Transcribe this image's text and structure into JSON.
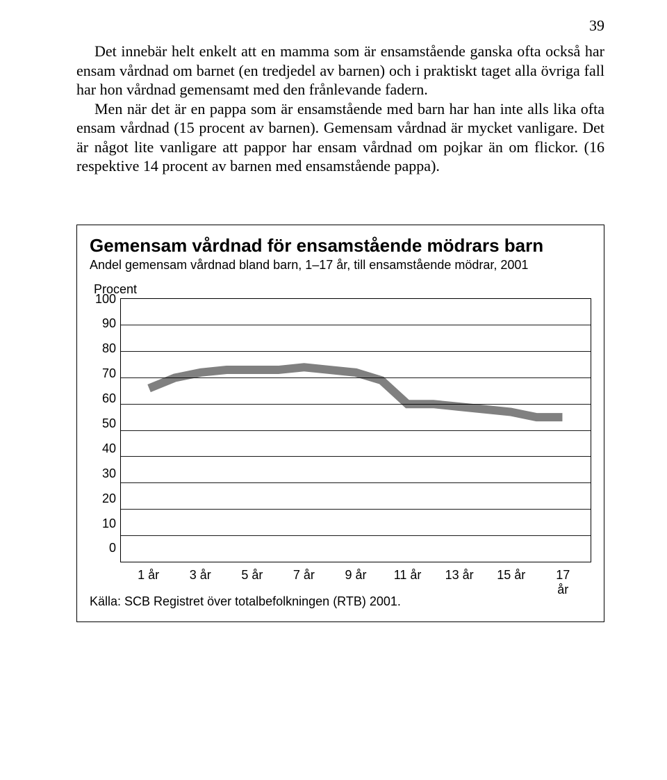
{
  "page_number": "39",
  "paragraph1": "Det innebär helt enkelt att en mamma som är ensamstående ganska ofta också har ensam vårdnad om barnet (en tredjedel av barnen) och i praktiskt taget alla övriga fall har hon vårdnad gemensamt med den frånlevande fadern.",
  "paragraph2": "Men när det är en pappa som är ensamstående med barn har han inte alls lika ofta ensam vårdnad (15 procent av barnen). Gemensam vårdnad är mycket vanligare. Det är något lite vanligare att pappor har ensam vårdnad om pojkar än om flickor. (16 respektive 14 procent av barnen med ensamstående pappa).",
  "chart": {
    "type": "line",
    "title": "Gemensam vårdnad för ensamstående mödrars barn",
    "subtitle": "Andel gemensam vårdnad bland barn, 1–17 år, till ensamstående mödrar, 2001",
    "ylabel": "Procent",
    "ylim": [
      0,
      100
    ],
    "ytick_step": 10,
    "y_ticks": [
      "100",
      "90",
      "80",
      "70",
      "60",
      "50",
      "40",
      "30",
      "20",
      "10",
      "0"
    ],
    "x_categories": [
      "1 år",
      "3 år",
      "5 år",
      "7 år",
      "9 år",
      "11 år",
      "13 år",
      "15 år",
      "17 år"
    ],
    "x_positions_pct": [
      6,
      17,
      28,
      39,
      50,
      61,
      72,
      83,
      94
    ],
    "series_x": [
      1,
      2,
      3,
      4,
      5,
      6,
      7,
      8,
      9,
      10,
      11,
      12,
      13,
      14,
      15,
      16,
      17
    ],
    "series_y": [
      66,
      70,
      72,
      73,
      73,
      73,
      74,
      73,
      72,
      69,
      60,
      60,
      59,
      58,
      57,
      55,
      55
    ],
    "line_color": "#808080",
    "line_width": 4,
    "grid_color": "#000000",
    "background_color": "#ffffff",
    "title_fontsize": 26,
    "subtitle_fontsize": 18,
    "tick_fontsize": 18,
    "source": "Källa: SCB Registret över totalbefolkningen (RTB) 2001."
  }
}
